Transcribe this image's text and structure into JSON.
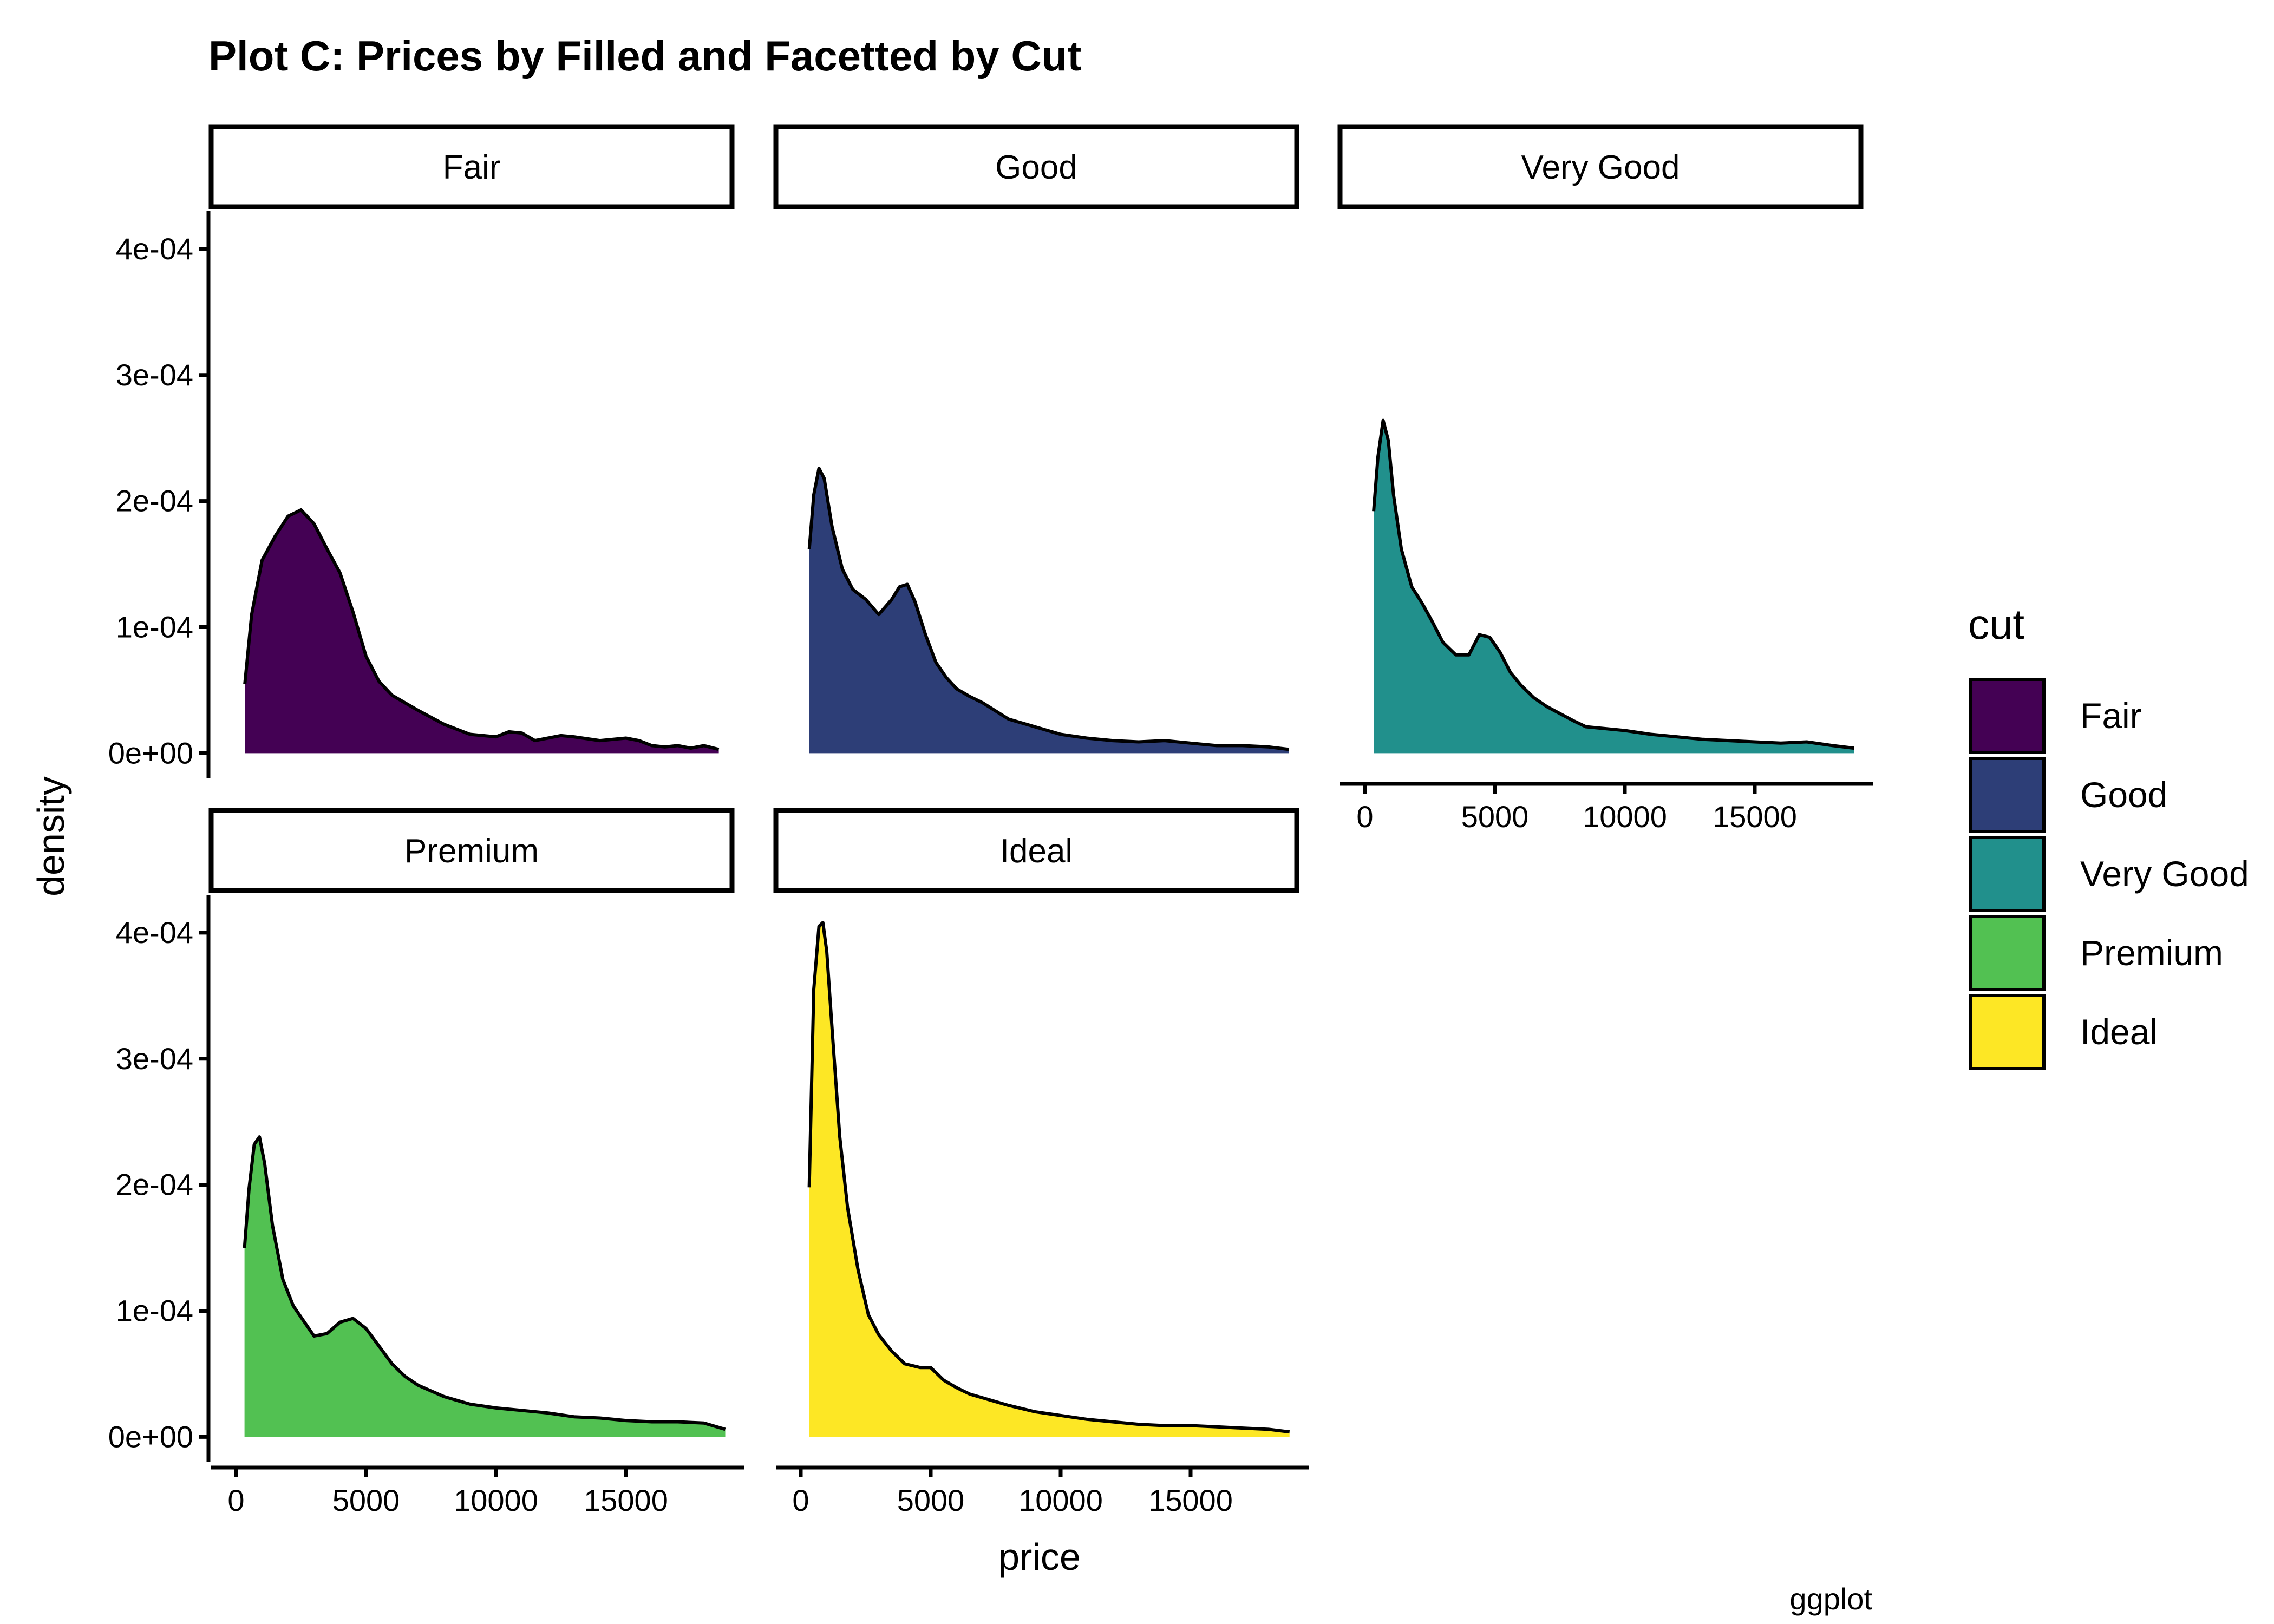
{
  "chart_data": {
    "type": "area",
    "title": "Plot C: Prices by Filled and Facetted by Cut",
    "xlabel": "price",
    "ylabel": "density",
    "caption": "ggplot",
    "xlim": [
      -500,
      19500
    ],
    "ylim": [
      -2e-05,
      0.00043
    ],
    "x_ticks": [
      0,
      5000,
      10000,
      15000
    ],
    "x_tick_labels": [
      "0",
      "5000",
      "10000",
      "15000"
    ],
    "y_ticks": [
      0,
      0.0001,
      0.0002,
      0.0003,
      0.0004
    ],
    "y_tick_labels": [
      "0e+00",
      "1e-04",
      "2e-04",
      "3e-04",
      "4e-04"
    ],
    "legend": {
      "title": "cut",
      "position": "right",
      "entries": [
        "Fair",
        "Good",
        "Very Good",
        "Premium",
        "Ideal"
      ]
    },
    "facets": [
      {
        "name": "Fair",
        "color": "#440154",
        "x": [
          337,
          600,
          1000,
          1500,
          2000,
          2500,
          3000,
          3500,
          4000,
          4500,
          5000,
          5500,
          6000,
          7000,
          8000,
          9000,
          10000,
          10500,
          11000,
          11500,
          12000,
          12500,
          13000,
          14000,
          15000,
          15500,
          16000,
          16500,
          17000,
          17500,
          18000,
          18574
        ],
        "y": [
          5.5e-05,
          0.00011,
          0.000153,
          0.000172,
          0.000188,
          0.000193,
          0.000182,
          0.000162,
          0.000143,
          0.000112,
          7.7e-05,
          5.7e-05,
          4.6e-05,
          3.4e-05,
          2.3e-05,
          1.5e-05,
          1.3e-05,
          1.7e-05,
          1.6e-05,
          1e-05,
          1.2e-05,
          1.4e-05,
          1.3e-05,
          1e-05,
          1.2e-05,
          1e-05,
          6e-06,
          5e-06,
          6e-06,
          4e-06,
          6e-06,
          3e-06
        ]
      },
      {
        "name": "Good",
        "color": "#2d3e77",
        "x": [
          327,
          500,
          700,
          900,
          1200,
          1600,
          2000,
          2500,
          3000,
          3500,
          3800,
          4100,
          4400,
          4800,
          5200,
          5600,
          6000,
          6500,
          7000,
          8000,
          9000,
          10000,
          11000,
          12000,
          13000,
          14000,
          15000,
          16000,
          17000,
          18000,
          18788
        ],
        "y": [
          0.000162,
          0.000205,
          0.000226,
          0.000218,
          0.00018,
          0.000146,
          0.00013,
          0.000122,
          0.00011,
          0.000122,
          0.000132,
          0.000134,
          0.00012,
          9.4e-05,
          7.2e-05,
          6e-05,
          5.1e-05,
          4.5e-05,
          4e-05,
          2.7e-05,
          2.1e-05,
          1.5e-05,
          1.2e-05,
          1e-05,
          9e-06,
          1e-05,
          8e-06,
          6e-06,
          6e-06,
          5e-06,
          3e-06
        ]
      },
      {
        "name": "Very Good",
        "color": "#21908c",
        "x": [
          336,
          500,
          700,
          900,
          1100,
          1400,
          1800,
          2200,
          2600,
          3000,
          3500,
          4000,
          4400,
          4800,
          5200,
          5600,
          6000,
          6500,
          7000,
          8000,
          8500,
          10000,
          11000,
          12000,
          13000,
          14000,
          15000,
          16000,
          17000,
          18000,
          18818
        ],
        "y": [
          0.000192,
          0.000235,
          0.000264,
          0.000248,
          0.000205,
          0.000162,
          0.000132,
          0.000119,
          0.000104,
          8.8e-05,
          7.8e-05,
          7.8e-05,
          9.4e-05,
          9.2e-05,
          8e-05,
          6.4e-05,
          5.4e-05,
          4.4e-05,
          3.7e-05,
          2.6e-05,
          2.1e-05,
          1.8e-05,
          1.5e-05,
          1.3e-05,
          1.1e-05,
          1e-05,
          9e-06,
          8e-06,
          9e-06,
          6e-06,
          4e-06
        ]
      },
      {
        "name": "Premium",
        "color": "#52c152",
        "x": [
          326,
          500,
          700,
          900,
          1100,
          1400,
          1800,
          2200,
          2600,
          3000,
          3500,
          4000,
          4500,
          5000,
          5500,
          6000,
          6500,
          7000,
          8000,
          9000,
          10000,
          11000,
          12000,
          13000,
          14000,
          15000,
          16000,
          17000,
          18000,
          18823
        ],
        "y": [
          0.00015,
          0.000197,
          0.000232,
          0.000238,
          0.000217,
          0.000168,
          0.000125,
          0.000104,
          9.2e-05,
          8e-05,
          8.2e-05,
          9.1e-05,
          9.4e-05,
          8.6e-05,
          7.2e-05,
          5.8e-05,
          4.8e-05,
          4.1e-05,
          3.2e-05,
          2.6e-05,
          2.3e-05,
          2.1e-05,
          1.9e-05,
          1.6e-05,
          1.5e-05,
          1.3e-05,
          1.2e-05,
          1.2e-05,
          1.1e-05,
          6e-06
        ]
      },
      {
        "name": "Ideal",
        "color": "#fde725",
        "x": [
          326,
          500,
          700,
          850,
          1000,
          1200,
          1500,
          1800,
          2200,
          2600,
          3000,
          3500,
          4000,
          4600,
          5000,
          5500,
          6000,
          6500,
          7000,
          8000,
          9000,
          10000,
          11000,
          12000,
          13000,
          14000,
          15000,
          16000,
          17000,
          18000,
          18806
        ],
        "y": [
          0.000198,
          0.000355,
          0.000405,
          0.000408,
          0.000385,
          0.000325,
          0.000238,
          0.000182,
          0.000133,
          9.7e-05,
          8.1e-05,
          6.8e-05,
          5.8e-05,
          5.5e-05,
          5.5e-05,
          4.5e-05,
          3.9e-05,
          3.4e-05,
          3.1e-05,
          2.5e-05,
          2e-05,
          1.7e-05,
          1.4e-05,
          1.2e-05,
          1e-05,
          9e-06,
          9e-06,
          8e-06,
          7e-06,
          6e-06,
          4e-06
        ]
      }
    ]
  }
}
